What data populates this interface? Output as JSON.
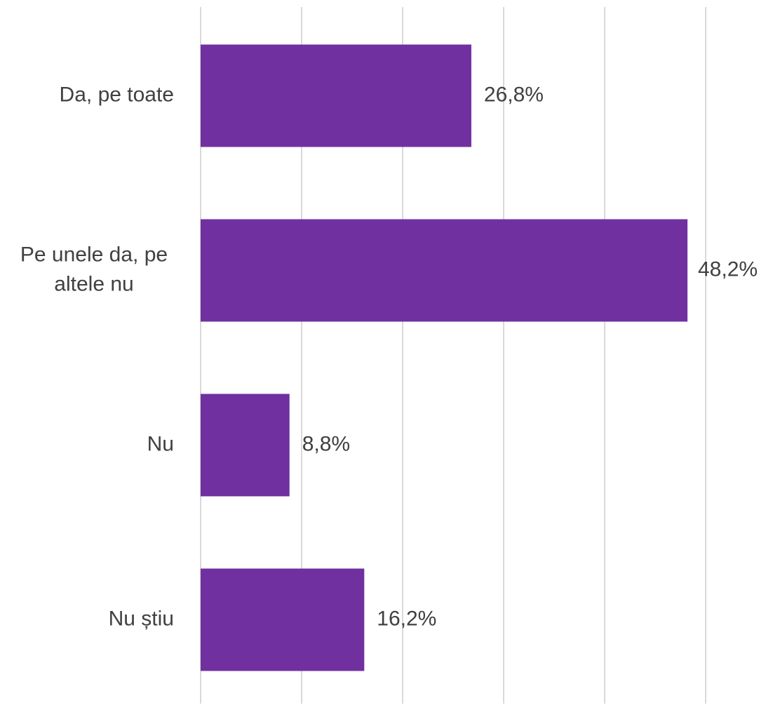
{
  "chart_data": {
    "type": "bar",
    "orientation": "horizontal",
    "categories": [
      [
        "Da, pe toate"
      ],
      [
        "Pe unele da, pe",
        "altele nu"
      ],
      [
        "Nu"
      ],
      [
        "Nu știu"
      ]
    ],
    "values": [
      26.8,
      48.2,
      8.8,
      16.2
    ],
    "value_labels": [
      "26,8%",
      "48,2%",
      "8,8%",
      "16,2%"
    ],
    "xlim": [
      0,
      50
    ],
    "grid_step": 10,
    "grid": true,
    "bar_color": "#7030a0",
    "grid_color": "#d9d9d9",
    "text_color": "#404040",
    "title": "",
    "xlabel": "",
    "ylabel": ""
  }
}
